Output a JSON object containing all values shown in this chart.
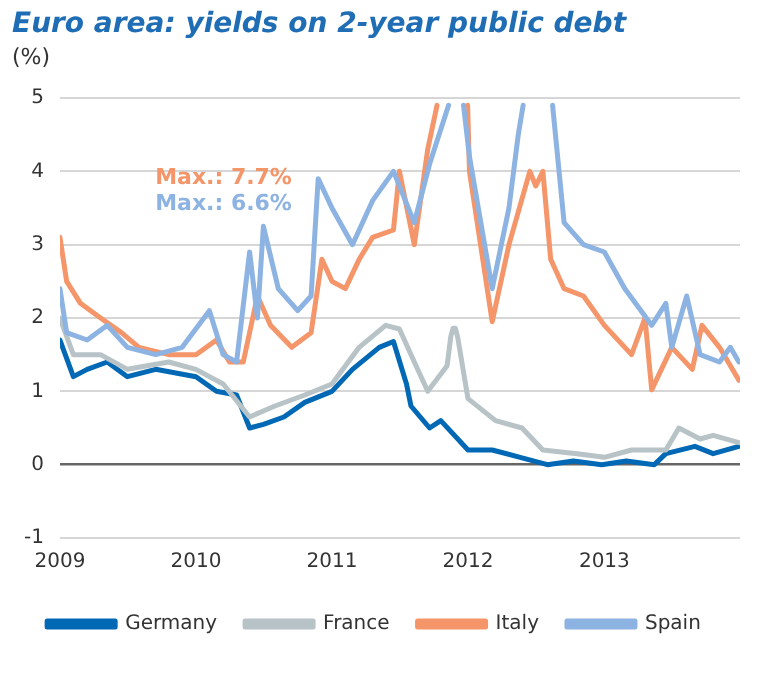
{
  "chart_data": {
    "type": "line",
    "title": "Euro area: yields on 2-year public debt",
    "ylabel": "(%)",
    "xlim": [
      "2009-01-01",
      "2013-12-31"
    ],
    "xticks": [
      "2009",
      "2010",
      "2011",
      "2012",
      "2013"
    ],
    "ylim": [
      -1,
      5
    ],
    "yticks": [
      -1,
      0,
      1,
      2,
      3,
      4,
      5
    ],
    "grid": "y",
    "legend": "bottom",
    "marker": "none",
    "line_style": "solid",
    "annotations": [
      "Max.: 7.7%",
      "Max.: 6.6%"
    ],
    "series": [
      {
        "name": "Germany",
        "color": "#0068b4",
        "x": [
          "2009-01-01",
          "2009-02-06",
          "2009-03-15",
          "2009-05-08",
          "2009-07-01",
          "2009-09-15",
          "2010-01-01",
          "2010-02-25",
          "2010-04-20",
          "2010-05-25",
          "2010-07-01",
          "2010-08-25",
          "2010-10-20",
          "2011-01-01",
          "2011-02-25",
          "2011-05-08",
          "2011-06-15",
          "2011-07-20",
          "2011-08-01",
          "2011-09-20",
          "2011-10-20",
          "2012-01-01",
          "2012-03-06",
          "2012-05-20",
          "2012-08-01",
          "2012-10-10",
          "2012-12-25",
          "2013-03-01",
          "2013-05-15",
          "2013-06-15",
          "2013-09-01",
          "2013-10-20",
          "2013-12-28"
        ],
        "values": [
          1.7,
          1.2,
          1.3,
          1.4,
          1.2,
          1.3,
          1.2,
          1.0,
          0.95,
          0.5,
          0.55,
          0.65,
          0.85,
          1.0,
          1.3,
          1.6,
          1.68,
          1.1,
          0.8,
          0.5,
          0.6,
          0.2,
          0.2,
          0.1,
          0.0,
          0.05,
          0.0,
          0.05,
          0.0,
          0.15,
          0.25,
          0.15,
          0.25
        ]
      },
      {
        "name": "France",
        "color": "#b7c3c6",
        "x": [
          "2009-01-01",
          "2009-02-06",
          "2009-04-20",
          "2009-07-01",
          "2009-10-20",
          "2010-01-01",
          "2010-03-15",
          "2010-05-25",
          "2010-08-01",
          "2010-10-20",
          "2011-01-01",
          "2011-03-15",
          "2011-05-25",
          "2011-07-01",
          "2011-08-10",
          "2011-09-15",
          "2011-11-06",
          "2011-11-16",
          "2011-11-22",
          "2011-11-28",
          "2011-12-04",
          "2012-01-01",
          "2012-03-15",
          "2012-05-25",
          "2012-07-20",
          "2012-10-20",
          "2013-01-01",
          "2013-03-15",
          "2013-06-15",
          "2013-07-20",
          "2013-09-15",
          "2013-10-20",
          "2013-12-28"
        ],
        "values": [
          2.0,
          1.5,
          1.5,
          1.3,
          1.4,
          1.3,
          1.1,
          0.65,
          0.8,
          0.95,
          1.1,
          1.6,
          1.9,
          1.85,
          1.4,
          1.0,
          1.35,
          1.75,
          1.86,
          1.86,
          1.75,
          0.9,
          0.6,
          0.5,
          0.2,
          0.15,
          0.1,
          0.2,
          0.2,
          0.5,
          0.35,
          0.4,
          0.3
        ]
      },
      {
        "name": "Italy",
        "color": "#f4956a",
        "x": [
          "2009-01-01",
          "2009-01-19",
          "2009-02-25",
          "2009-04-20",
          "2009-06-15",
          "2009-08-01",
          "2009-10-20",
          "2010-01-01",
          "2010-02-25",
          "2010-04-01",
          "2010-05-08",
          "2010-06-15",
          "2010-07-20",
          "2010-09-15",
          "2010-11-06",
          "2010-12-05",
          "2011-01-01",
          "2011-02-06",
          "2011-03-15",
          "2011-04-20",
          "2011-06-15",
          "2011-07-01",
          "2011-08-10",
          "2011-09-15",
          "2011-10-10",
          "2011-10-25",
          "2011-12-31",
          "2012-01-05",
          "2012-03-06",
          "2012-04-20",
          "2012-06-15",
          "2012-07-01",
          "2012-07-20",
          "2012-08-10",
          "2012-09-15",
          "2012-11-06",
          "2013-01-01",
          "2013-03-15",
          "2013-04-20",
          "2013-05-08",
          "2013-07-01",
          "2013-08-25",
          "2013-09-20",
          "2013-11-06",
          "2013-12-28"
        ],
        "values": [
          3.1,
          2.5,
          2.2,
          2.0,
          1.8,
          1.6,
          1.5,
          1.5,
          1.7,
          1.4,
          1.4,
          2.3,
          1.9,
          1.6,
          1.8,
          2.8,
          2.5,
          2.4,
          2.8,
          3.1,
          3.2,
          4.0,
          3.0,
          4.3,
          4.9,
          null,
          4.9,
          4.0,
          1.95,
          3.0,
          4.0,
          3.8,
          4.0,
          2.8,
          2.4,
          2.3,
          1.9,
          1.5,
          2.0,
          1.02,
          1.6,
          1.3,
          1.9,
          1.6,
          1.15
        ]
      },
      {
        "name": "Spain",
        "color": "#8db3e2",
        "x": [
          "2009-01-01",
          "2009-01-19",
          "2009-03-15",
          "2009-05-08",
          "2009-07-01",
          "2009-09-15",
          "2009-11-25",
          "2010-02-06",
          "2010-03-15",
          "2010-04-20",
          "2010-05-25",
          "2010-06-15",
          "2010-07-01",
          "2010-08-10",
          "2010-10-01",
          "2010-11-06",
          "2010-11-25",
          "2011-01-01",
          "2011-02-25",
          "2011-04-20",
          "2011-06-15",
          "2011-08-10",
          "2011-09-20",
          "2011-11-10",
          "2011-11-25",
          "2011-12-20",
          "2012-01-05",
          "2012-03-06",
          "2012-04-20",
          "2012-05-15",
          "2012-05-28",
          "2012-08-10",
          "2012-08-15",
          "2012-09-15",
          "2012-11-06",
          "2013-01-01",
          "2013-02-25",
          "2013-05-08",
          "2013-06-15",
          "2013-07-01",
          "2013-08-10",
          "2013-09-15",
          "2013-11-06",
          "2013-12-05",
          "2013-12-28"
        ],
        "values": [
          2.4,
          1.8,
          1.7,
          1.9,
          1.6,
          1.5,
          1.6,
          2.1,
          1.5,
          1.4,
          2.9,
          2.0,
          3.25,
          2.4,
          2.1,
          2.3,
          3.9,
          3.5,
          3.0,
          3.6,
          4.0,
          3.3,
          4.1,
          4.9,
          null,
          4.9,
          4.2,
          2.4,
          3.5,
          4.5,
          4.9,
          null,
          4.9,
          3.3,
          3.0,
          2.9,
          2.4,
          1.9,
          2.2,
          1.6,
          2.3,
          1.5,
          1.4,
          1.6,
          1.4
        ]
      }
    ]
  }
}
